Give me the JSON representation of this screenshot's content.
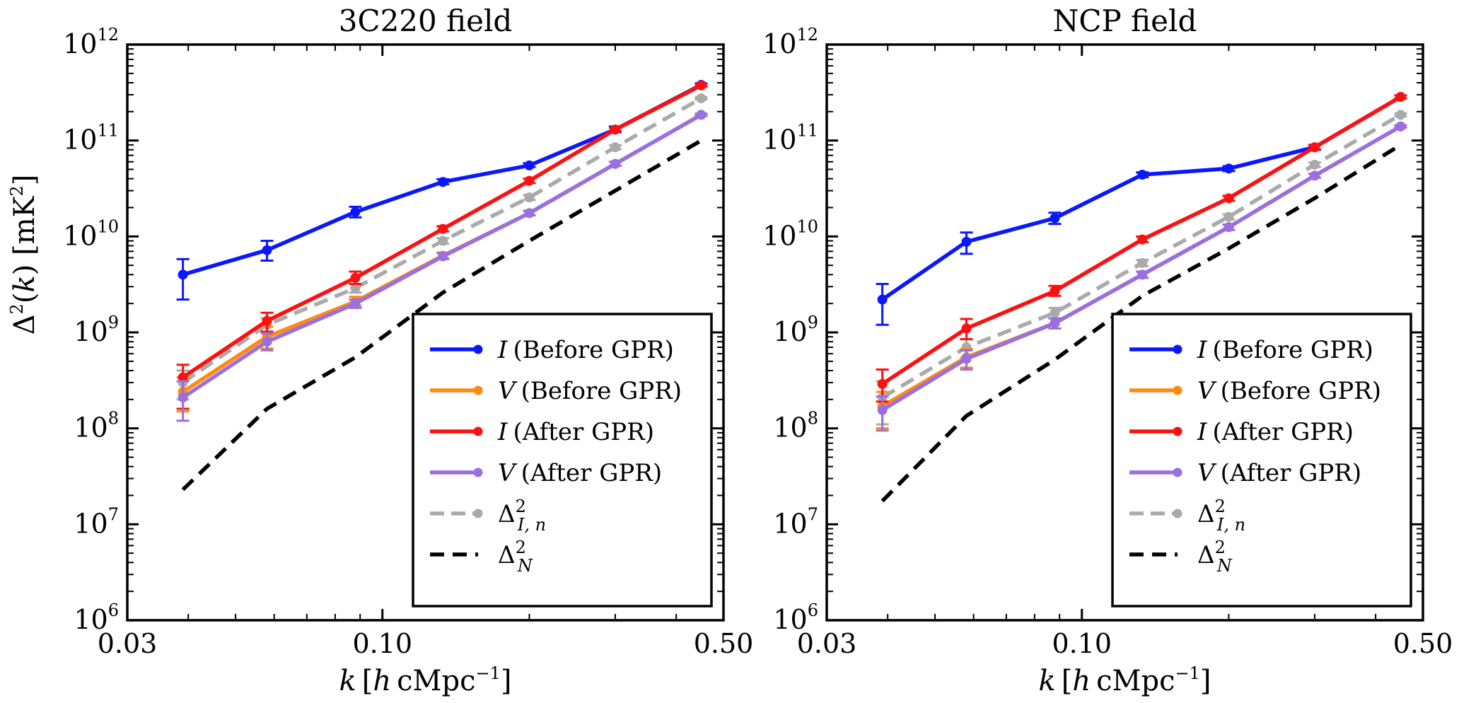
{
  "figure": {
    "ylabel": "Δ²(k) [mK²]"
  },
  "colors": {
    "I_before": "#0a18ff",
    "V_before": "#ff8a10",
    "I_after": "#ff1010",
    "V_after": "#9a6fe0",
    "noise_I": "#aaaaaa",
    "noise_N": "#000000"
  },
  "chart_data": [
    {
      "type": "line",
      "title": "3C220 field",
      "xlabel": "k [h cMpc⁻¹]",
      "ylabel": "Δ²(k) [mK²]",
      "xscale": "log",
      "yscale": "log",
      "xlim": [
        0.03,
        0.5
      ],
      "ylim": [
        1000000.0,
        1000000000000.0
      ],
      "xticks": [
        0.03,
        0.1,
        0.5
      ],
      "xtick_labels": [
        "0.03",
        "0.10",
        "0.50"
      ],
      "ytick_exponents": [
        6,
        7,
        8,
        9,
        10,
        11,
        12
      ],
      "x": [
        0.039,
        0.058,
        0.088,
        0.133,
        0.2,
        0.3,
        0.45
      ],
      "series": [
        {
          "key": "I_before",
          "name": "I (Before GPR)",
          "style": "solid",
          "values": [
            4000000000.0,
            7200000000.0,
            18000000000.0,
            37000000000.0,
            55000000000.0,
            130000000000.0,
            380000000000.0
          ],
          "err_lo": [
            1800000000.0,
            1600000000.0,
            2200000000.0,
            2000000000.0,
            2000000000.0,
            8000000000.0,
            15000000000.0
          ],
          "err_hi": [
            1800000000.0,
            1800000000.0,
            2400000000.0,
            2500000000.0,
            3000000000.0,
            10000000000.0,
            15000000000.0
          ]
        },
        {
          "key": "V_before",
          "name": "V (Before GPR)",
          "style": "solid",
          "values": [
            240000000.0,
            900000000.0,
            2100000000.0,
            6300000000.0,
            17500000000.0,
            57000000000.0,
            185000000000.0
          ],
          "err_lo": [
            90000000.0,
            220000000.0,
            200000000.0,
            400000000.0,
            900000000.0,
            2500000000.0,
            5000000000.0
          ],
          "err_hi": [
            100000000.0,
            250000000.0,
            250000000.0,
            500000000.0,
            1000000000.0,
            3000000000.0,
            5000000000.0
          ]
        },
        {
          "key": "I_after",
          "name": "I (After GPR)",
          "style": "solid",
          "values": [
            340000000.0,
            1320000000.0,
            3700000000.0,
            12000000000.0,
            38000000000.0,
            130000000000.0,
            375000000000.0
          ],
          "err_lo": [
            180000000.0,
            300000000.0,
            500000000.0,
            700000000.0,
            2000000000.0,
            5000000000.0,
            12000000000.0
          ],
          "err_hi": [
            120000000.0,
            280000000.0,
            600000000.0,
            800000000.0,
            2000000000.0,
            5000000000.0,
            12000000000.0
          ]
        },
        {
          "key": "V_after",
          "name": "V (After GPR)",
          "style": "solid",
          "values": [
            210000000.0,
            800000000.0,
            2000000000.0,
            6200000000.0,
            17500000000.0,
            57000000000.0,
            185000000000.0
          ],
          "err_lo": [
            90000000.0,
            150000000.0,
            200000000.0,
            400000000.0,
            900000000.0,
            2500000000.0,
            5000000000.0
          ],
          "err_hi": [
            100000000.0,
            180000000.0,
            200000000.0,
            500000000.0,
            1000000000.0,
            3000000000.0,
            5000000000.0
          ]
        },
        {
          "key": "noise_I",
          "name": "Δ²_{I,n}",
          "style": "dashed",
          "values": [
            300000000.0,
            1200000000.0,
            2900000000.0,
            9000000000.0,
            25500000000.0,
            85000000000.0,
            275000000000.0
          ],
          "err_lo": [
            100000000.0,
            200000000.0,
            300000000.0,
            600000000.0,
            1500000000.0,
            4000000000.0,
            8000000000.0
          ],
          "err_hi": [
            100000000.0,
            200000000.0,
            300000000.0,
            600000000.0,
            1500000000.0,
            4000000000.0,
            8000000000.0
          ]
        },
        {
          "key": "noise_N",
          "name": "Δ²_N",
          "style": "dashed-black",
          "values": [
            23000000.0,
            160000000.0,
            550000000.0,
            2600000000.0,
            9000000000.0,
            30000000000.0,
            100000000000.0
          ]
        }
      ]
    },
    {
      "type": "line",
      "title": "NCP field",
      "xlabel": "k [h cMpc⁻¹]",
      "ylabel": "",
      "xscale": "log",
      "yscale": "log",
      "xlim": [
        0.03,
        0.5
      ],
      "ylim": [
        1000000.0,
        1000000000000.0
      ],
      "xticks": [
        0.03,
        0.1,
        0.5
      ],
      "xtick_labels": [
        "0.03",
        "0.10",
        "0.50"
      ],
      "ytick_exponents": [
        6,
        7,
        8,
        9,
        10,
        11,
        12
      ],
      "x": [
        0.039,
        0.058,
        0.088,
        0.133,
        0.2,
        0.3,
        0.45
      ],
      "series": [
        {
          "key": "I_before",
          "name": "I (Before GPR)",
          "style": "solid",
          "values": [
            2200000000.0,
            8800000000.0,
            15500000000.0,
            44000000000.0,
            51000000000.0,
            85000000000.0,
            285000000000.0
          ],
          "err_lo": [
            1000000000.0,
            2200000000.0,
            2000000000.0,
            2500000000.0,
            3000000000.0,
            5000000000.0,
            10000000000.0
          ],
          "err_hi": [
            1000000000.0,
            2200000000.0,
            2200000000.0,
            2500000000.0,
            3000000000.0,
            5000000000.0,
            10000000000.0
          ]
        },
        {
          "key": "V_before",
          "name": "V (Before GPR)",
          "style": "solid",
          "values": [
            170000000.0,
            550000000.0,
            1250000000.0,
            4000000000.0,
            12500000000.0,
            43000000000.0,
            140000000000.0
          ],
          "err_lo": [
            70000000.0,
            120000000.0,
            150000000.0,
            300000000.0,
            800000000.0,
            2000000000.0,
            4000000000.0
          ],
          "err_hi": [
            70000000.0,
            120000000.0,
            150000000.0,
            300000000.0,
            800000000.0,
            2000000000.0,
            4000000000.0
          ]
        },
        {
          "key": "I_after",
          "name": "I (After GPR)",
          "style": "solid",
          "values": [
            290000000.0,
            1100000000.0,
            2700000000.0,
            9300000000.0,
            25000000000.0,
            85000000000.0,
            285000000000.0
          ],
          "err_lo": [
            100000000.0,
            250000000.0,
            300000000.0,
            600000000.0,
            1500000000.0,
            4000000000.0,
            10000000000.0
          ],
          "err_hi": [
            120000000.0,
            280000000.0,
            350000000.0,
            700000000.0,
            1500000000.0,
            4000000000.0,
            10000000000.0
          ]
        },
        {
          "key": "V_after",
          "name": "V (After GPR)",
          "style": "solid",
          "values": [
            155000000.0,
            530000000.0,
            1250000000.0,
            4000000000.0,
            12500000000.0,
            43000000000.0,
            140000000000.0
          ],
          "err_lo": [
            60000000.0,
            120000000.0,
            150000000.0,
            300000000.0,
            800000000.0,
            2000000000.0,
            4000000000.0
          ],
          "err_hi": [
            60000000.0,
            120000000.0,
            150000000.0,
            300000000.0,
            800000000.0,
            2000000000.0,
            4000000000.0
          ]
        },
        {
          "key": "noise_I",
          "name": "Δ²_{I,n}",
          "style": "dashed",
          "values": [
            210000000.0,
            700000000.0,
            1600000000.0,
            5300000000.0,
            16000000000.0,
            56000000000.0,
            185000000000.0
          ],
          "err_lo": [
            100000000.0,
            150000000.0,
            200000000.0,
            400000000.0,
            1000000000.0,
            3000000000.0,
            6000000000.0
          ],
          "err_hi": [
            100000000.0,
            150000000.0,
            200000000.0,
            400000000.0,
            1000000000.0,
            3000000000.0,
            6000000000.0
          ]
        },
        {
          "key": "noise_N",
          "name": "Δ²_N",
          "style": "dashed-black",
          "values": [
            17500000.0,
            135000000.0,
            520000000.0,
            2400000000.0,
            7500000000.0,
            25000000000.0,
            90000000000.0
          ]
        }
      ]
    }
  ]
}
